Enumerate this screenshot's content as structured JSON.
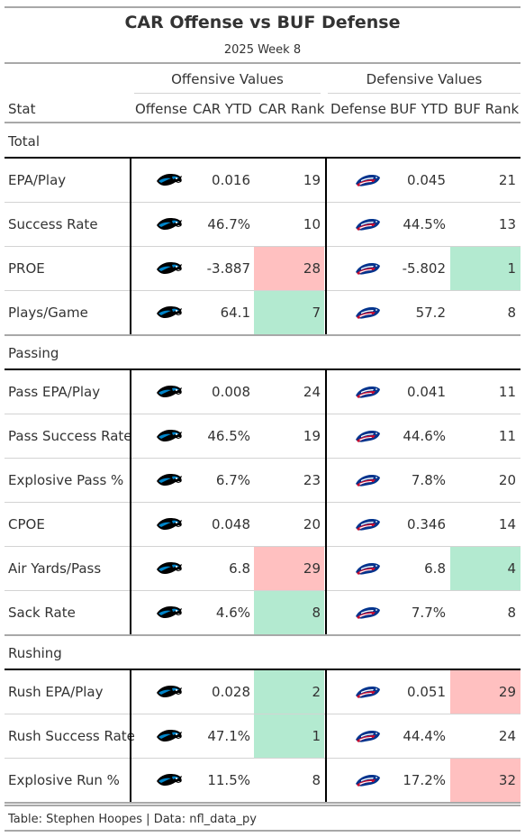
{
  "title": "CAR Offense vs BUF Defense",
  "subtitle": "2025 Week 8",
  "spanners": {
    "offense": "Offensive Values",
    "defense": "Defensive Values"
  },
  "columns": {
    "stat": "Stat",
    "offense": "Offense",
    "car_ytd": "CAR YTD",
    "car_rank": "CAR Rank",
    "defense": "Defense",
    "buf_ytd": "BUF YTD",
    "buf_rank": "BUF Rank"
  },
  "logos": {
    "offense": "panthers-logo",
    "defense": "bills-logo"
  },
  "colors": {
    "good": "#b3ead0",
    "bad": "#ffc0c0"
  },
  "groups": [
    {
      "name": "Total",
      "rows": [
        {
          "stat": "EPA/Play",
          "car_ytd": "0.016",
          "car_rank": "19",
          "car_hl": "",
          "buf_ytd": "0.045",
          "buf_rank": "21",
          "buf_hl": ""
        },
        {
          "stat": "Success Rate",
          "car_ytd": "46.7%",
          "car_rank": "10",
          "car_hl": "",
          "buf_ytd": "44.5%",
          "buf_rank": "13",
          "buf_hl": ""
        },
        {
          "stat": "PROE",
          "car_ytd": "-3.887",
          "car_rank": "28",
          "car_hl": "bad",
          "buf_ytd": "-5.802",
          "buf_rank": "1",
          "buf_hl": "good"
        },
        {
          "stat": "Plays/Game",
          "car_ytd": "64.1",
          "car_rank": "7",
          "car_hl": "good",
          "buf_ytd": "57.2",
          "buf_rank": "8",
          "buf_hl": ""
        }
      ]
    },
    {
      "name": "Passing",
      "rows": [
        {
          "stat": "Pass EPA/Play",
          "car_ytd": "0.008",
          "car_rank": "24",
          "car_hl": "",
          "buf_ytd": "0.041",
          "buf_rank": "11",
          "buf_hl": ""
        },
        {
          "stat": "Pass Success Rate",
          "car_ytd": "46.5%",
          "car_rank": "19",
          "car_hl": "",
          "buf_ytd": "44.6%",
          "buf_rank": "11",
          "buf_hl": ""
        },
        {
          "stat": "Explosive Pass %",
          "car_ytd": "6.7%",
          "car_rank": "23",
          "car_hl": "",
          "buf_ytd": "7.8%",
          "buf_rank": "20",
          "buf_hl": ""
        },
        {
          "stat": "CPOE",
          "car_ytd": "0.048",
          "car_rank": "20",
          "car_hl": "",
          "buf_ytd": "0.346",
          "buf_rank": "14",
          "buf_hl": ""
        },
        {
          "stat": "Air Yards/Pass",
          "car_ytd": "6.8",
          "car_rank": "29",
          "car_hl": "bad",
          "buf_ytd": "6.8",
          "buf_rank": "4",
          "buf_hl": "good"
        },
        {
          "stat": "Sack Rate",
          "car_ytd": "4.6%",
          "car_rank": "8",
          "car_hl": "good",
          "buf_ytd": "7.7%",
          "buf_rank": "8",
          "buf_hl": ""
        }
      ]
    },
    {
      "name": "Rushing",
      "rows": [
        {
          "stat": "Rush EPA/Play",
          "car_ytd": "0.028",
          "car_rank": "2",
          "car_hl": "good",
          "buf_ytd": "0.051",
          "buf_rank": "29",
          "buf_hl": "bad"
        },
        {
          "stat": "Rush Success Rate",
          "car_ytd": "47.1%",
          "car_rank": "1",
          "car_hl": "good",
          "buf_ytd": "44.4%",
          "buf_rank": "24",
          "buf_hl": ""
        },
        {
          "stat": "Explosive Run %",
          "car_ytd": "11.5%",
          "car_rank": "8",
          "car_hl": "",
          "buf_ytd": "17.2%",
          "buf_rank": "32",
          "buf_hl": "bad"
        }
      ]
    }
  ],
  "footer": "Table: Stephen Hoopes | Data: nfl_data_py"
}
